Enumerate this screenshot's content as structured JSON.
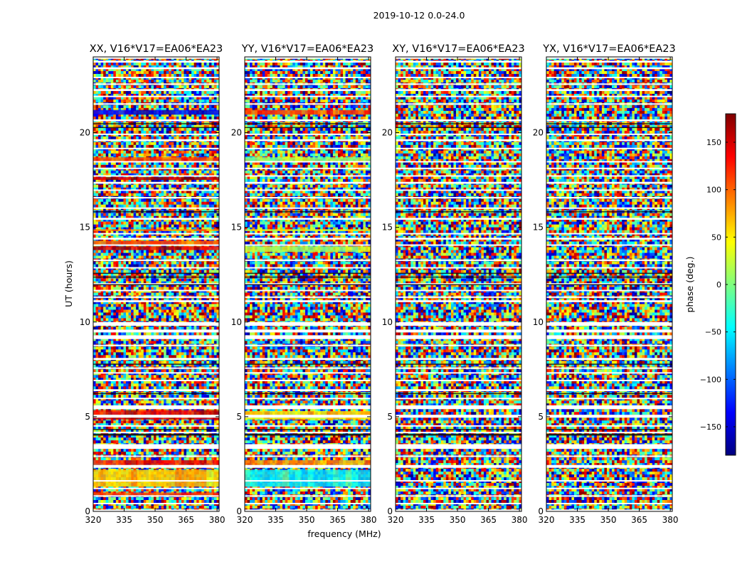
{
  "figure": {
    "suptitle": "2019-10-12 0.0-24.0",
    "xlabel": "frequency (MHz)",
    "ylabel": "UT (hours)"
  },
  "chart_data": {
    "type": "heatmap",
    "colormap": "jet",
    "xlim": [
      320,
      381
    ],
    "ylim": [
      0,
      24
    ],
    "xticks": [
      320,
      335,
      350,
      365,
      380
    ],
    "yticks": [
      0,
      5,
      10,
      15,
      20
    ],
    "colorbar": {
      "label": "phase (deg.)",
      "vmin": -180,
      "vmax": 180,
      "ticks": [
        -150,
        -100,
        -50,
        0,
        50,
        100,
        150
      ],
      "tick_labels": [
        "−150",
        "−100",
        "−50",
        "0",
        "50",
        "100",
        "150"
      ]
    },
    "panels": [
      {
        "title": "XX, V16*V17=EA06*EA23",
        "correlation": "XX"
      },
      {
        "title": "YY, V16*V17=EA06*EA23",
        "correlation": "YY"
      },
      {
        "title": "XY, V16*V17=EA06*EA23",
        "correlation": "XY"
      },
      {
        "title": "YX, V16*V17=EA06*EA23",
        "correlation": "YX"
      }
    ],
    "gap_bands_ut": [
      [
        0.0,
        0.1
      ],
      [
        0.4,
        0.45
      ],
      [
        0.8,
        0.85
      ],
      [
        1.2,
        1.25
      ],
      [
        1.6,
        1.65
      ],
      [
        2.3,
        2.45
      ],
      [
        2.9,
        2.95
      ],
      [
        3.3,
        3.55
      ],
      [
        4.15,
        4.2
      ],
      [
        4.5,
        4.55
      ],
      [
        4.95,
        5.1
      ],
      [
        5.4,
        5.6
      ],
      [
        5.95,
        6.0
      ],
      [
        6.35,
        6.45
      ],
      [
        6.9,
        6.95
      ],
      [
        7.3,
        7.35
      ],
      [
        7.55,
        7.6
      ],
      [
        8.0,
        8.1
      ],
      [
        8.75,
        8.8
      ],
      [
        9.1,
        9.3
      ],
      [
        9.45,
        9.6
      ],
      [
        9.8,
        10.0
      ],
      [
        11.05,
        11.15
      ],
      [
        11.3,
        11.35
      ],
      [
        11.65,
        11.7
      ],
      [
        12.0,
        12.05
      ],
      [
        12.85,
        12.9
      ],
      [
        13.25,
        13.3
      ],
      [
        14.05,
        14.1
      ],
      [
        14.35,
        14.45
      ],
      [
        14.65,
        14.7
      ],
      [
        15.4,
        15.5
      ],
      [
        16.0,
        16.05
      ],
      [
        16.55,
        16.6
      ],
      [
        16.95,
        17.0
      ],
      [
        17.3,
        17.4
      ],
      [
        17.7,
        17.75
      ],
      [
        18.1,
        18.15
      ],
      [
        18.45,
        18.5
      ],
      [
        19.15,
        19.2
      ],
      [
        19.55,
        19.65
      ],
      [
        19.9,
        19.95
      ],
      [
        20.6,
        20.7
      ],
      [
        21.5,
        21.55
      ],
      [
        21.9,
        21.95
      ],
      [
        22.2,
        22.3
      ],
      [
        22.55,
        22.6
      ],
      [
        22.9,
        22.95
      ],
      [
        23.35,
        23.45
      ],
      [
        23.7,
        23.8
      ],
      [
        23.9,
        24.0
      ]
    ],
    "dark_bands_ut": [
      [
        4.0,
        4.1
      ],
      [
        4.3,
        4.35
      ],
      [
        6.2,
        6.25
      ],
      [
        7.75,
        7.8
      ],
      [
        11.95,
        12.0
      ],
      [
        12.35,
        12.4
      ],
      [
        12.55,
        12.6
      ],
      [
        20.25,
        20.3
      ],
      [
        20.45,
        20.5
      ],
      [
        15.8,
        15.85
      ]
    ],
    "coherent_bands": {
      "XX": [
        {
          "ut": [
            0.85,
            1.0
          ],
          "phase": 120
        },
        {
          "ut": [
            1.3,
            2.2
          ],
          "phase": 60
        },
        {
          "ut": [
            2.45,
            2.7
          ],
          "phase": 130
        },
        {
          "ut": [
            4.85,
            4.95
          ],
          "phase": 150
        },
        {
          "ut": [
            5.1,
            5.35
          ],
          "phase": 140
        },
        {
          "ut": [
            13.8,
            14.0
          ],
          "phase": 150
        },
        {
          "ut": [
            14.1,
            14.3
          ],
          "phase": 100
        },
        {
          "ut": [
            14.8,
            14.9
          ],
          "phase": 90
        },
        {
          "ut": [
            17.5,
            17.65
          ],
          "phase": 160
        },
        {
          "ut": [
            18.5,
            18.7
          ],
          "phase": 110
        },
        {
          "ut": [
            20.95,
            21.2
          ],
          "phase": -140
        }
      ],
      "YY": [
        {
          "ut": [
            1.3,
            2.2
          ],
          "phase": -40
        },
        {
          "ut": [
            2.45,
            2.7
          ],
          "phase": 80
        },
        {
          "ut": [
            4.85,
            5.1
          ],
          "phase": 50
        },
        {
          "ut": [
            5.1,
            5.3
          ],
          "phase": 60
        },
        {
          "ut": [
            13.7,
            14.0
          ],
          "phase": 20
        },
        {
          "ut": [
            14.8,
            14.9
          ],
          "phase": 40
        },
        {
          "ut": [
            18.5,
            18.7
          ],
          "phase": 10
        },
        {
          "ut": [
            20.95,
            21.2
          ],
          "phase": 110
        }
      ],
      "XY": [],
      "YX": []
    }
  }
}
